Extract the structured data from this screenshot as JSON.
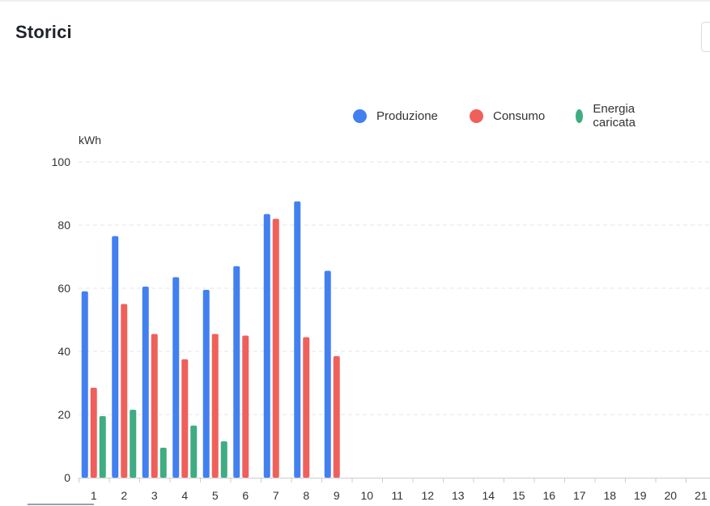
{
  "header": {
    "title": "Storici"
  },
  "colors": {
    "produzione": "#4280f0",
    "consumo": "#f0605a",
    "energia": "#3fac84",
    "grid": "#e6e6e6",
    "axis": "#cccccc",
    "text": "#333333"
  },
  "chart_data": {
    "type": "bar",
    "ylabel": "kWh",
    "ylim": [
      0,
      100
    ],
    "yticks": [
      0,
      20,
      40,
      60,
      80,
      100
    ],
    "grid": true,
    "legend_position": "top-right",
    "categories": [
      "1",
      "2",
      "3",
      "4",
      "5",
      "6",
      "7",
      "8",
      "9",
      "10",
      "11",
      "12",
      "13",
      "14",
      "15",
      "16",
      "17",
      "18",
      "19",
      "20",
      "21"
    ],
    "series": [
      {
        "name": "Produzione",
        "color": "#4280f0",
        "values": [
          59,
          76.5,
          60.5,
          63.5,
          59.5,
          67,
          83.5,
          87.5,
          65.5,
          null,
          null,
          null,
          null,
          null,
          null,
          null,
          null,
          null,
          null,
          null,
          null
        ]
      },
      {
        "name": "Consumo",
        "color": "#f0605a",
        "values": [
          28.5,
          55,
          45.5,
          37.5,
          45.5,
          45,
          82,
          44.5,
          38.5,
          null,
          null,
          null,
          null,
          null,
          null,
          null,
          null,
          null,
          null,
          null,
          null
        ]
      },
      {
        "name": "Energia caricata",
        "color": "#3fac84",
        "values": [
          19.5,
          21.5,
          9.5,
          16.5,
          11.5,
          null,
          null,
          null,
          null,
          null,
          null,
          null,
          null,
          null,
          null,
          null,
          null,
          null,
          null,
          null,
          null
        ]
      }
    ]
  }
}
